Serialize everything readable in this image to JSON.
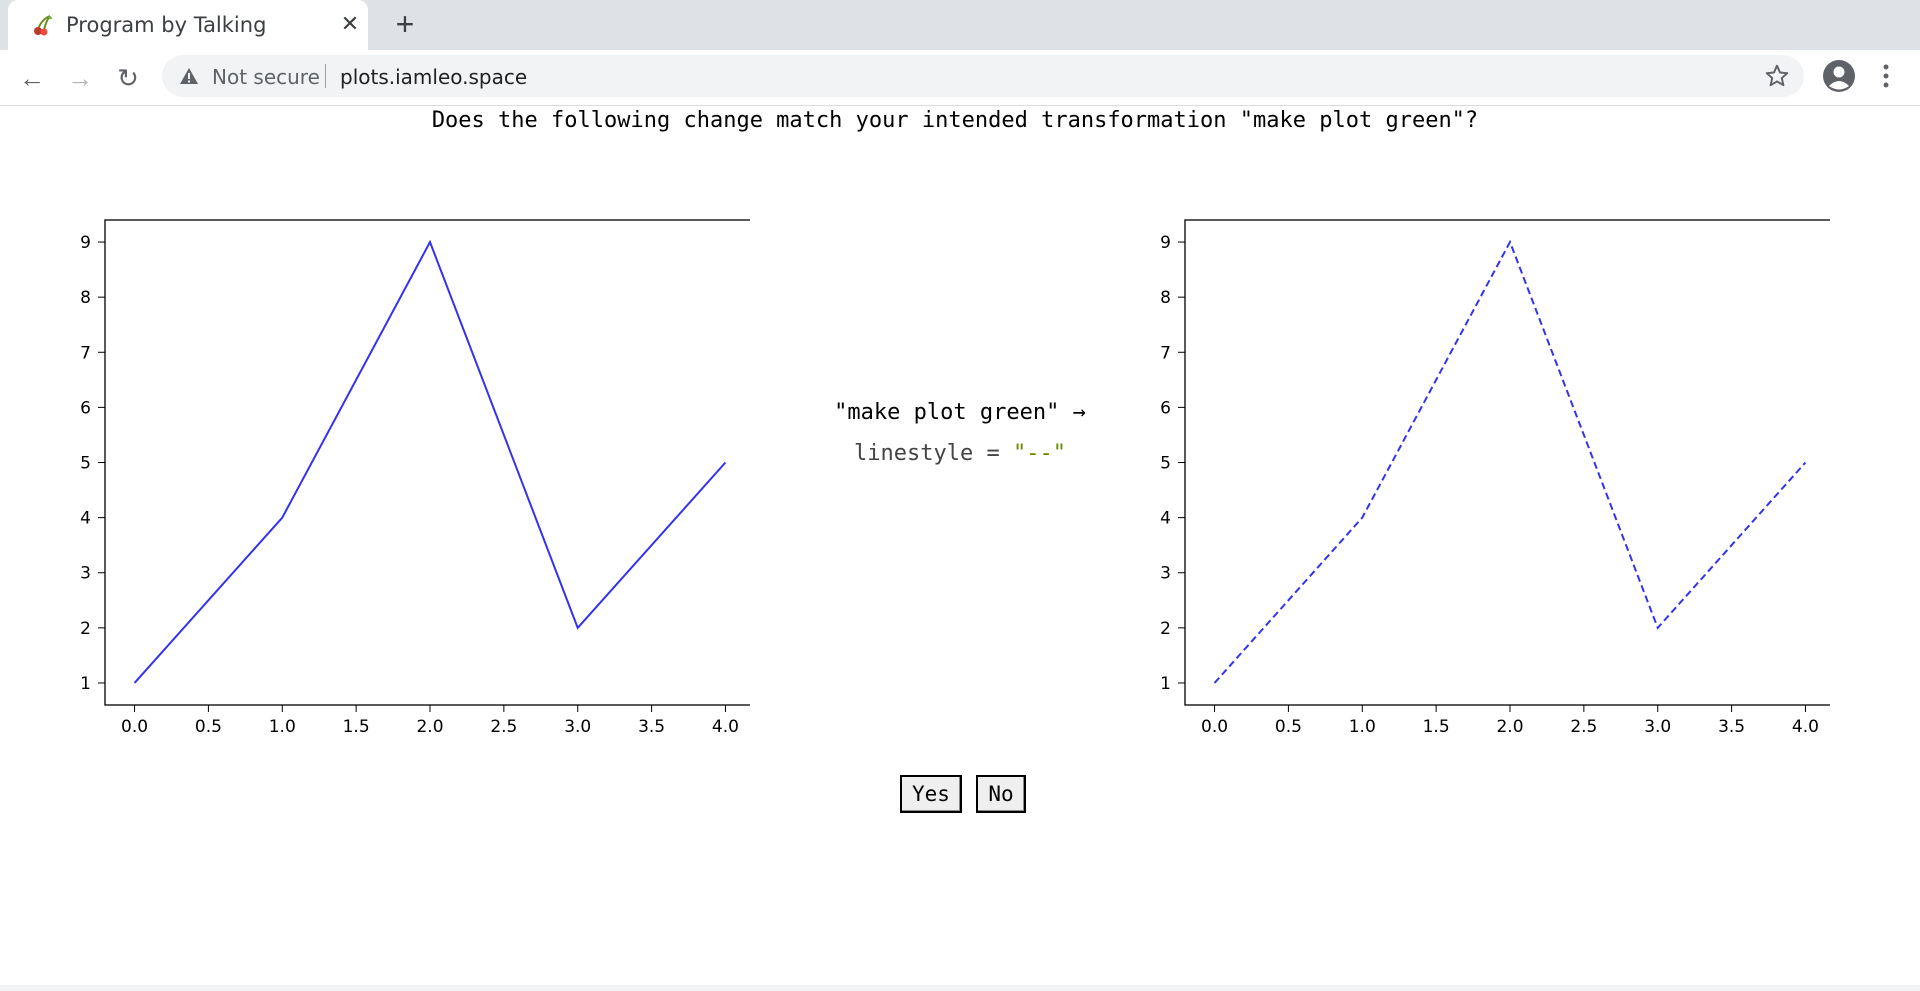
{
  "browser": {
    "tab_title": "Program by Talking",
    "tab_close": "✕",
    "new_tab": "+",
    "security_label": "Not secure",
    "url": "plots.iamleo.space",
    "back": "←",
    "forward": "→",
    "reload": "↻"
  },
  "page": {
    "question": "Does the following change match your intended transformation \"make plot green\"?",
    "transform_label": "\"make plot green\" →",
    "code_key": "linestyle = ",
    "code_value": "\"--\"",
    "yes_label": "Yes",
    "no_label": "No"
  },
  "colors": {
    "line": "#3333ee",
    "string": "#6a8a00"
  },
  "chart_data": [
    {
      "type": "line",
      "x": [
        0,
        1,
        2,
        3,
        4
      ],
      "values": [
        1,
        4,
        9,
        2,
        5
      ],
      "linestyle": "solid",
      "xlim": [
        -0.2,
        4.2
      ],
      "ylim": [
        0.6,
        9.4
      ],
      "xticks": [
        "0.0",
        "0.5",
        "1.0",
        "1.5",
        "2.0",
        "2.5",
        "3.0",
        "3.5",
        "4.0"
      ],
      "yticks": [
        "1",
        "2",
        "3",
        "4",
        "5",
        "6",
        "7",
        "8",
        "9"
      ]
    },
    {
      "type": "line",
      "x": [
        0,
        1,
        2,
        3,
        4
      ],
      "values": [
        1,
        4,
        9,
        2,
        5
      ],
      "linestyle": "dashed",
      "xlim": [
        -0.2,
        4.2
      ],
      "ylim": [
        0.6,
        9.4
      ],
      "xticks": [
        "0.0",
        "0.5",
        "1.0",
        "1.5",
        "2.0",
        "2.5",
        "3.0",
        "3.5",
        "4.0"
      ],
      "yticks": [
        "1",
        "2",
        "3",
        "4",
        "5",
        "6",
        "7",
        "8",
        "9"
      ]
    }
  ]
}
